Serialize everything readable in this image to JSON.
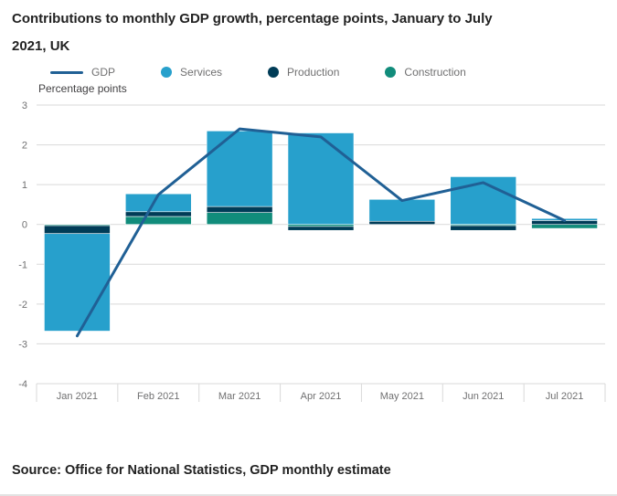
{
  "header": {
    "title_line1": "Contributions to monthly GDP growth, percentage points, January to July",
    "title_line2": "2021, UK"
  },
  "footer": {
    "source": "Source: Office for National Statistics, GDP monthly estimate"
  },
  "legend": [
    {
      "label": "GDP",
      "type": "line",
      "color": "#206095"
    },
    {
      "label": "Services",
      "type": "dot",
      "color": "#27A0CC"
    },
    {
      "label": "Production",
      "type": "dot",
      "color": "#003C57"
    },
    {
      "label": "Construction",
      "type": "dot",
      "color": "#118C7B"
    }
  ],
  "chart_data": {
    "type": "bar",
    "subtype": "stacked-column-with-line-overlay",
    "title": "Contributions to monthly GDP growth, percentage points, January to July 2021, UK",
    "y_axis_title": "Percentage points",
    "categories": [
      "Jan 2021",
      "Feb 2021",
      "Mar 2021",
      "Apr 2021",
      "May 2021",
      "Jun 2021",
      "Jul 2021"
    ],
    "bar_series": [
      {
        "name": "Services",
        "color": "#27A0CC",
        "values": [
          -2.45,
          0.45,
          1.9,
          2.3,
          0.55,
          1.2,
          0.05
        ]
      },
      {
        "name": "Production",
        "color": "#003C57",
        "values": [
          -0.2,
          0.12,
          0.15,
          -0.1,
          0.08,
          -0.12,
          0.1
        ]
      },
      {
        "name": "Construction",
        "color": "#118C7B",
        "values": [
          -0.03,
          0.2,
          0.3,
          -0.05,
          0.0,
          -0.03,
          -0.1
        ]
      }
    ],
    "line_series": {
      "name": "GDP",
      "color": "#206095",
      "values": [
        -2.8,
        0.75,
        2.4,
        2.2,
        0.6,
        1.05,
        0.1
      ]
    },
    "ylim": [
      -4,
      3
    ],
    "yticks": [
      3,
      2,
      1,
      0,
      -1,
      -2,
      -3,
      -4
    ],
    "grid": true,
    "legend_position": "top",
    "grid_color": "#d9d9d9",
    "axis_text_color": "#707071"
  }
}
